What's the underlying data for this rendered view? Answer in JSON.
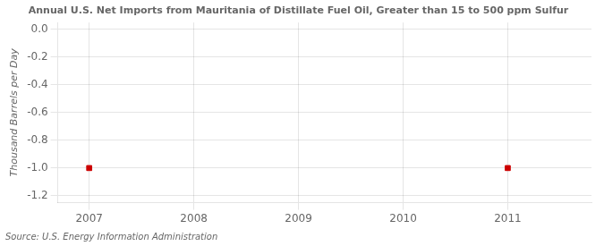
{
  "chart_data": {
    "type": "scatter",
    "title": "Annual U.S. Net Imports from Mauritania of Distillate Fuel Oil, Greater than 15 to 500 ppm Sulfur",
    "ylabel": "Thousand Barrels per Day",
    "annotation": "Source: U.S. Energy Information Administration",
    "x": [
      2007,
      2011
    ],
    "values": [
      -1.0,
      -1.0
    ],
    "color": "#cc0000",
    "marker": "square",
    "xlim": [
      2006.7,
      2011.8
    ],
    "xticks": [
      2007,
      2008,
      2009,
      2010,
      2011
    ],
    "ylim": [
      -1.25,
      0.05
    ],
    "yticks": [
      {
        "value": 0.0,
        "label": "0.0"
      },
      -0.2,
      -0.4,
      -0.6,
      -0.8,
      {
        "value": -1.0,
        "label": "-1.0"
      },
      -1.2
    ],
    "grid": true
  }
}
